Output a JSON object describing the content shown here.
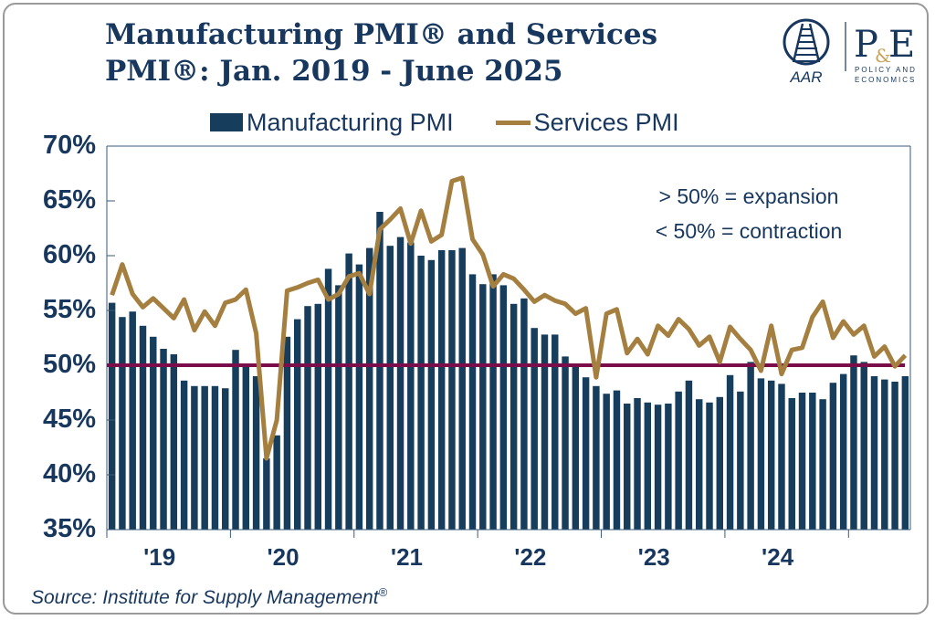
{
  "title_line1": "Manufacturing PMI® and Services",
  "title_line2": "PMI®: Jan. 2019 - June 2025",
  "logo": {
    "left": "AAR",
    "right_main": "P&E",
    "right_sub1": "POLICY AND",
    "right_sub2": "ECONOMICS"
  },
  "source": "Source: Institute for Supply Management",
  "source_mark": "®",
  "annotations": [
    "> 50% = expansion",
    "< 50% = contraction"
  ],
  "colors": {
    "manufacturing": "#163d5c",
    "services": "#a57f40",
    "threshold": "#7b0d4a",
    "text": "#17375e"
  },
  "chart_data": {
    "type": "bar+line",
    "x_start": "2019-01",
    "x_end": "2025-06",
    "frequency": "monthly",
    "ylim": [
      35,
      70
    ],
    "yticks": [
      "35%",
      "40%",
      "45%",
      "50%",
      "55%",
      "60%",
      "65%",
      "70%"
    ],
    "ytick_values": [
      35,
      40,
      45,
      50,
      55,
      60,
      65,
      70
    ],
    "xtick_labels": [
      "'19",
      "'20",
      "'21",
      "'22",
      "'23",
      "'24"
    ],
    "threshold": 50,
    "legend_position": "top",
    "grid": false,
    "series": [
      {
        "name": "Manufacturing PMI",
        "kind": "bar",
        "values": [
          55.7,
          54.4,
          54.9,
          53.6,
          52.6,
          51.5,
          51.0,
          48.6,
          48.1,
          48.1,
          48.1,
          47.9,
          51.4,
          50.1,
          49.0,
          41.5,
          43.6,
          52.6,
          54.2,
          55.4,
          55.6,
          58.8,
          57.3,
          60.2,
          59.2,
          60.7,
          64.0,
          60.9,
          61.7,
          61.2,
          60.0,
          59.6,
          60.5,
          60.5,
          60.7,
          58.3,
          57.4,
          58.3,
          57.3,
          55.6,
          56.1,
          53.4,
          52.8,
          52.8,
          50.8,
          50.0,
          48.9,
          48.1,
          47.4,
          47.7,
          46.5,
          47.0,
          46.6,
          46.4,
          46.5,
          47.6,
          48.6,
          46.9,
          46.6,
          47.1,
          49.1,
          47.6,
          50.3,
          48.8,
          48.6,
          48.3,
          47.0,
          47.5,
          47.5,
          46.9,
          48.4,
          49.2,
          50.9,
          50.3,
          49.0,
          48.7,
          48.5,
          49.0
        ]
      },
      {
        "name": "Services PMI",
        "kind": "line",
        "values": [
          56.4,
          59.2,
          56.5,
          55.3,
          56.1,
          55.2,
          54.3,
          56.0,
          53.2,
          54.9,
          53.6,
          55.7,
          56.0,
          56.9,
          52.9,
          41.5,
          45.0,
          56.8,
          57.1,
          57.5,
          57.8,
          56.0,
          56.5,
          58.1,
          58.4,
          56.5,
          62.4,
          63.3,
          64.3,
          61.1,
          64.1,
          61.3,
          61.9,
          66.8,
          67.1,
          61.5,
          60.1,
          57.2,
          58.3,
          57.9,
          56.9,
          55.8,
          56.4,
          55.9,
          55.6,
          54.7,
          55.2,
          48.9,
          54.7,
          55.1,
          51.1,
          52.4,
          51.0,
          53.6,
          52.7,
          54.2,
          53.3,
          51.8,
          52.6,
          50.3,
          53.5,
          52.4,
          51.4,
          49.5,
          53.6,
          49.2,
          51.4,
          51.6,
          54.4,
          55.8,
          52.5,
          54.0,
          52.8,
          53.6,
          50.8,
          51.7,
          49.9,
          50.9
        ]
      }
    ]
  }
}
